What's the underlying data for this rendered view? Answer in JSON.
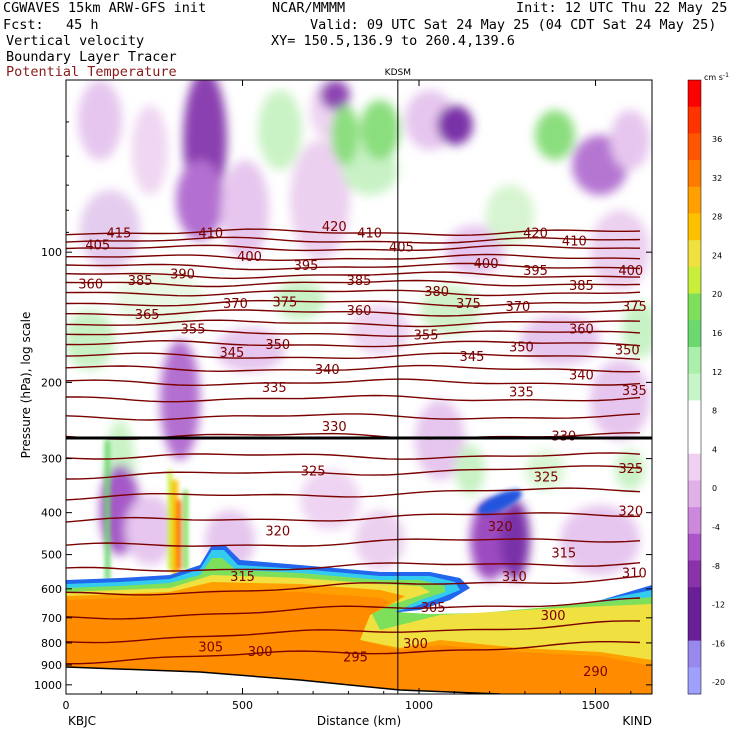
{
  "header": {
    "model": "CGWAVES 15km ARW-GFS init",
    "center": "NCAR/MMMM",
    "init": "Init: 12 UTC Thu 22 May 25",
    "fcst_label": "Fcst:",
    "fcst_value": "45 h",
    "valid": "Valid: 09 UTC Sat 24 May 25 (04 CDT Sat 24 May 25)",
    "field1": "Vertical velocity",
    "xy": "XY= 150.5,136.9 to 260.4,139.6",
    "field2": "Boundary Layer Tracer",
    "field3": "Potential Temperature",
    "field3_color": "#8b1a1a"
  },
  "chart_data": {
    "type": "heatmap",
    "title": "",
    "station_marker": {
      "label": "KDSM",
      "x": 940
    },
    "xlabel": "Distance (km)",
    "ylabel": "Pressure (hPa), log scale",
    "xlim": [
      0,
      1660
    ],
    "ylim": [
      1050,
      40
    ],
    "y_scale": "log",
    "x_ticks": [
      "0",
      "500",
      "1000",
      "1500"
    ],
    "x_tick_values": [
      0,
      500,
      1000,
      1500
    ],
    "y_ticks": [
      "100",
      "200",
      "300",
      "400",
      "500",
      "600",
      "700",
      "800",
      "900",
      "1000"
    ],
    "y_tick_values": [
      100,
      200,
      300,
      400,
      500,
      600,
      700,
      800,
      900,
      1000
    ],
    "endpoint_left": "KBJC",
    "endpoint_right": "KIND",
    "colorbar": {
      "unit": "cm s",
      "unit_exp": "-1",
      "labels": [
        "36",
        "32",
        "28",
        "24",
        "20",
        "16",
        "12",
        "8",
        "4",
        "0",
        "-4",
        "-8",
        "-12",
        "-16",
        "-20"
      ],
      "colors": [
        "#ff0000",
        "#ff3300",
        "#ff5500",
        "#ff7b00",
        "#ffa000",
        "#ffc000",
        "#f0e040",
        "#c8ee3a",
        "#7ee05a",
        "#6cd870",
        "#aaf0aa",
        "#c8f5c8",
        "#ffffff",
        "#ffffff",
        "#f0d0f0",
        "#e0b0e8",
        "#cc88dd",
        "#aa55c8",
        "#8833aa",
        "#6a1f99",
        "#6a1f99",
        "#9988ee",
        "#a0a0ff"
      ]
    },
    "theta_labels": [
      {
        "value": "415",
        "x": 150,
        "p": 90
      },
      {
        "value": "410",
        "x": 410,
        "p": 90
      },
      {
        "value": "420",
        "x": 760,
        "p": 87
      },
      {
        "value": "410",
        "x": 860,
        "p": 90
      },
      {
        "value": "420",
        "x": 1330,
        "p": 90
      },
      {
        "value": "410",
        "x": 1440,
        "p": 94
      },
      {
        "value": "405",
        "x": 90,
        "p": 96
      },
      {
        "value": "405",
        "x": 950,
        "p": 97
      },
      {
        "value": "400",
        "x": 520,
        "p": 102
      },
      {
        "value": "395",
        "x": 680,
        "p": 107
      },
      {
        "value": "400",
        "x": 1190,
        "p": 106
      },
      {
        "value": "395",
        "x": 1330,
        "p": 110
      },
      {
        "value": "400",
        "x": 1600,
        "p": 110
      },
      {
        "value": "390",
        "x": 330,
        "p": 112
      },
      {
        "value": "360",
        "x": 70,
        "p": 118
      },
      {
        "value": "385",
        "x": 210,
        "p": 116
      },
      {
        "value": "385",
        "x": 830,
        "p": 116
      },
      {
        "value": "385",
        "x": 1460,
        "p": 119
      },
      {
        "value": "380",
        "x": 1050,
        "p": 123
      },
      {
        "value": "370",
        "x": 480,
        "p": 131
      },
      {
        "value": "375",
        "x": 620,
        "p": 130
      },
      {
        "value": "375",
        "x": 1140,
        "p": 131
      },
      {
        "value": "370",
        "x": 1280,
        "p": 133
      },
      {
        "value": "375",
        "x": 1610,
        "p": 133
      },
      {
        "value": "365",
        "x": 230,
        "p": 139
      },
      {
        "value": "360",
        "x": 830,
        "p": 136
      },
      {
        "value": "360",
        "x": 1460,
        "p": 150
      },
      {
        "value": "355",
        "x": 360,
        "p": 150
      },
      {
        "value": "355",
        "x": 1020,
        "p": 155
      },
      {
        "value": "350",
        "x": 600,
        "p": 163
      },
      {
        "value": "350",
        "x": 1290,
        "p": 165
      },
      {
        "value": "350",
        "x": 1590,
        "p": 168
      },
      {
        "value": "345",
        "x": 470,
        "p": 170
      },
      {
        "value": "345",
        "x": 1150,
        "p": 174
      },
      {
        "value": "340",
        "x": 740,
        "p": 186
      },
      {
        "value": "340",
        "x": 1460,
        "p": 192
      },
      {
        "value": "335",
        "x": 590,
        "p": 205
      },
      {
        "value": "335",
        "x": 1290,
        "p": 210
      },
      {
        "value": "335",
        "x": 1610,
        "p": 208
      },
      {
        "value": "330",
        "x": 760,
        "p": 252
      },
      {
        "value": "330",
        "x": 1410,
        "p": 265
      },
      {
        "value": "325",
        "x": 700,
        "p": 320
      },
      {
        "value": "325",
        "x": 1360,
        "p": 330
      },
      {
        "value": "325",
        "x": 1600,
        "p": 315
      },
      {
        "value": "320",
        "x": 600,
        "p": 440
      },
      {
        "value": "320",
        "x": 1230,
        "p": 430
      },
      {
        "value": "320",
        "x": 1600,
        "p": 395
      },
      {
        "value": "315",
        "x": 500,
        "p": 560
      },
      {
        "value": "315",
        "x": 1410,
        "p": 495
      },
      {
        "value": "310",
        "x": 1270,
        "p": 560
      },
      {
        "value": "310",
        "x": 1610,
        "p": 550
      },
      {
        "value": "305",
        "x": 1040,
        "p": 660
      },
      {
        "value": "300",
        "x": 1380,
        "p": 690
      },
      {
        "value": "305",
        "x": 410,
        "p": 815
      },
      {
        "value": "300",
        "x": 550,
        "p": 835
      },
      {
        "value": "300",
        "x": 990,
        "p": 800
      },
      {
        "value": "295",
        "x": 820,
        "p": 860
      },
      {
        "value": "290",
        "x": 1500,
        "p": 930
      }
    ]
  }
}
